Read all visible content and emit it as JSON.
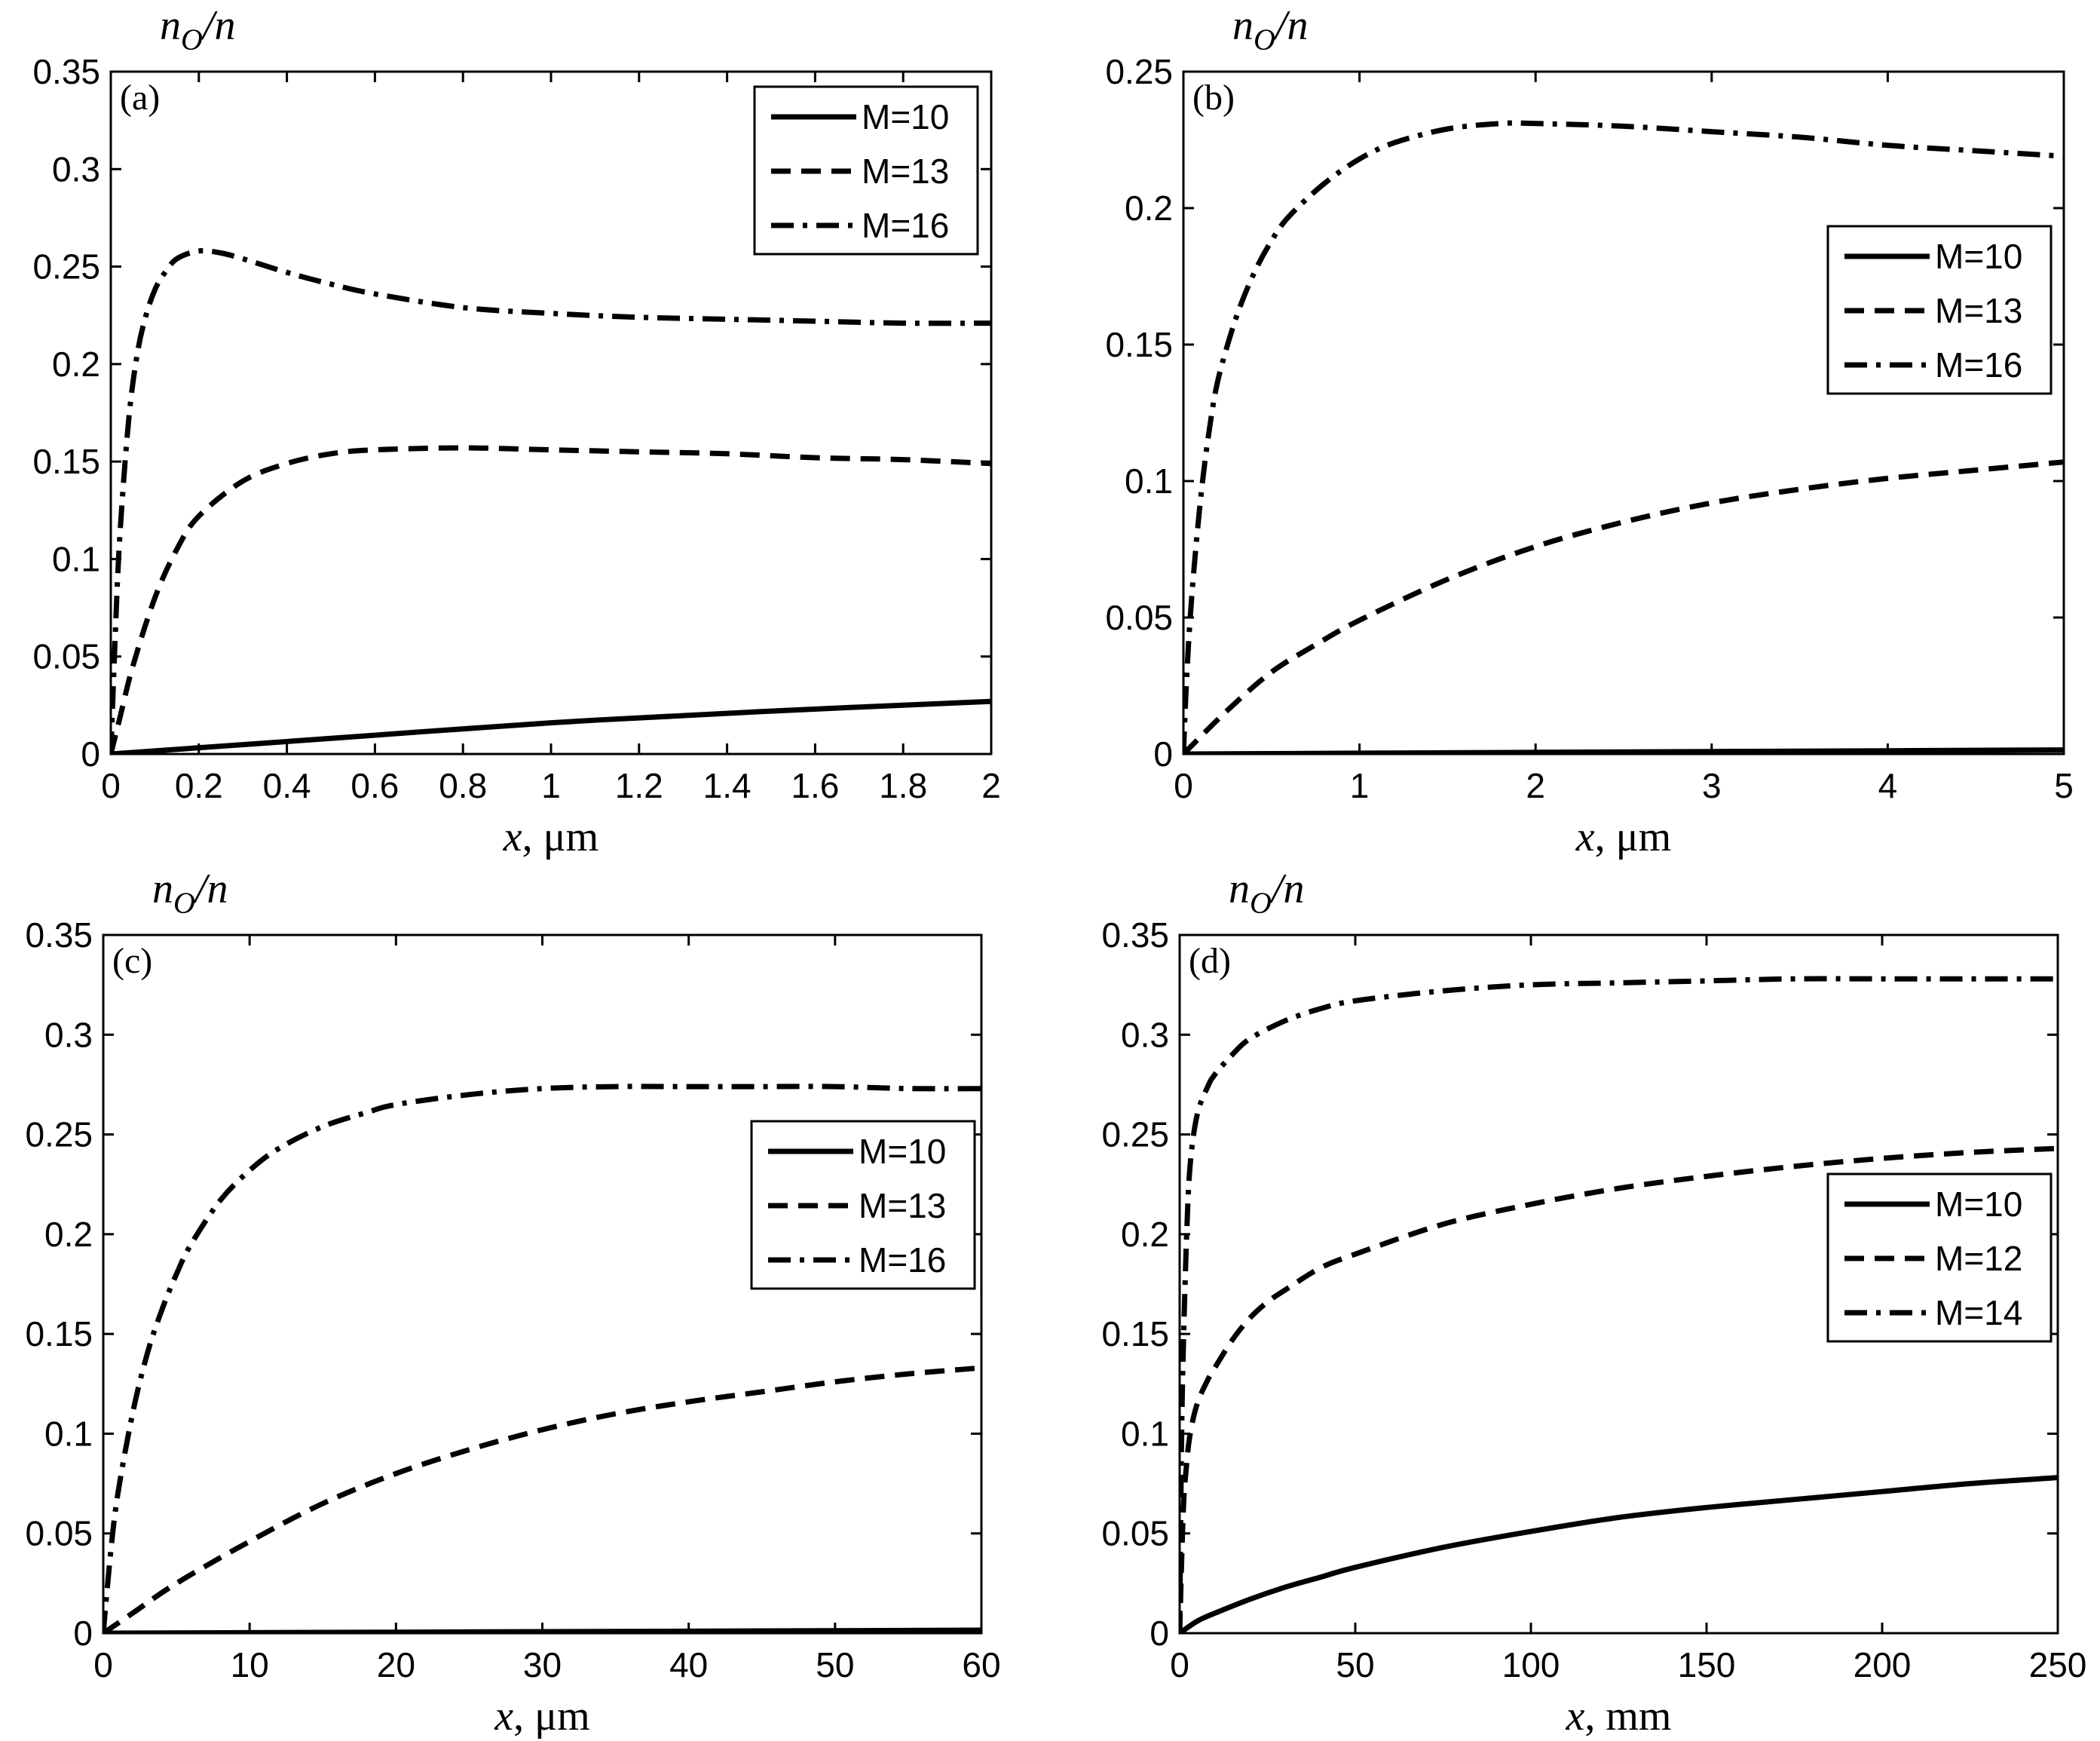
{
  "styles": {
    "solid": "",
    "dashed": "26,14",
    "dashdot": "30,12,6,12"
  },
  "chart_data": [
    {
      "type": "line",
      "panel_label": "(a)",
      "ylabel_main": "n",
      "ylabel_sub": "O",
      "ylabel_rest": "/n",
      "xlabel_var": "x",
      "xlabel_unit": ", μm",
      "xlim": [
        0,
        2
      ],
      "ylim": [
        0,
        0.35
      ],
      "xticks": [
        0,
        0.2,
        0.4,
        0.6,
        0.8,
        1,
        1.2,
        1.4,
        1.6,
        1.8,
        2
      ],
      "xtick_labels": [
        "0",
        "0.2",
        "0.4",
        "0.6",
        "0.8",
        "1",
        "1.2",
        "1.4",
        "1.6",
        "1.8",
        "2"
      ],
      "yticks": [
        0,
        0.05,
        0.1,
        0.15,
        0.2,
        0.25,
        0.3,
        0.35
      ],
      "ytick_labels": [
        "0",
        "0.05",
        "0.1",
        "0.15",
        "0.2",
        "0.25",
        "0.3",
        "0.35"
      ],
      "legend_position": "top-right",
      "series": [
        {
          "name": "M=10",
          "style": "solid",
          "x": [
            0,
            0.5,
            1,
            1.5,
            2
          ],
          "y": [
            0,
            0.008,
            0.016,
            0.022,
            0.027
          ]
        },
        {
          "name": "M=13",
          "style": "dashed",
          "x": [
            0,
            0.02,
            0.05,
            0.1,
            0.15,
            0.2,
            0.3,
            0.4,
            0.5,
            0.6,
            0.8,
            1.0,
            1.2,
            1.4,
            1.6,
            1.8,
            2.0
          ],
          "y": [
            0,
            0.018,
            0.045,
            0.08,
            0.105,
            0.122,
            0.14,
            0.149,
            0.154,
            0.156,
            0.157,
            0.156,
            0.155,
            0.154,
            0.152,
            0.151,
            0.149
          ]
        },
        {
          "name": "M=16",
          "style": "dashdot",
          "x": [
            0,
            0.01,
            0.02,
            0.04,
            0.06,
            0.08,
            0.1,
            0.12,
            0.15,
            0.2,
            0.25,
            0.3,
            0.4,
            0.5,
            0.6,
            0.8,
            1.0,
            1.2,
            1.4,
            1.6,
            1.8,
            2.0
          ],
          "y": [
            0,
            0.06,
            0.11,
            0.17,
            0.205,
            0.225,
            0.238,
            0.246,
            0.254,
            0.258,
            0.257,
            0.254,
            0.247,
            0.241,
            0.236,
            0.229,
            0.226,
            0.224,
            0.223,
            0.222,
            0.221,
            0.221
          ]
        }
      ]
    },
    {
      "type": "line",
      "panel_label": "(b)",
      "ylabel_main": "n",
      "ylabel_sub": "O",
      "ylabel_rest": "/n",
      "xlabel_var": "x",
      "xlabel_unit": ", μm",
      "xlim": [
        0,
        5
      ],
      "ylim": [
        0,
        0.25
      ],
      "xticks": [
        0,
        1,
        2,
        3,
        4,
        5
      ],
      "xtick_labels": [
        "0",
        "1",
        "2",
        "3",
        "4",
        "5"
      ],
      "yticks": [
        0,
        0.05,
        0.1,
        0.15,
        0.2,
        0.25
      ],
      "ytick_labels": [
        "0",
        "0.05",
        "0.1",
        "0.15",
        "0.2",
        "0.25"
      ],
      "legend_position": "upper-right",
      "series": [
        {
          "name": "M=10",
          "style": "solid",
          "x": [
            0,
            1,
            2,
            3,
            4,
            5
          ],
          "y": [
            0,
            0.0003,
            0.0006,
            0.0009,
            0.0012,
            0.0015
          ]
        },
        {
          "name": "M=13",
          "style": "dashed",
          "x": [
            0,
            0.25,
            0.5,
            0.75,
            1.0,
            1.5,
            2.0,
            2.5,
            3.0,
            3.5,
            4.0,
            4.5,
            5.0
          ],
          "y": [
            0,
            0.016,
            0.03,
            0.04,
            0.049,
            0.064,
            0.076,
            0.085,
            0.092,
            0.097,
            0.101,
            0.104,
            0.107
          ]
        },
        {
          "name": "M=16",
          "style": "dashdot",
          "x": [
            0,
            0.02,
            0.05,
            0.1,
            0.15,
            0.2,
            0.3,
            0.4,
            0.5,
            0.6,
            0.8,
            1.0,
            1.2,
            1.5,
            1.8,
            2.0,
            2.5,
            3.0,
            3.5,
            4.0,
            4.5,
            5.0
          ],
          "y": [
            0,
            0.03,
            0.06,
            0.095,
            0.12,
            0.138,
            0.16,
            0.176,
            0.188,
            0.197,
            0.209,
            0.218,
            0.224,
            0.229,
            0.231,
            0.231,
            0.23,
            0.228,
            0.226,
            0.223,
            0.221,
            0.219
          ]
        }
      ]
    },
    {
      "type": "line",
      "panel_label": "(c)",
      "ylabel_main": "n",
      "ylabel_sub": "O",
      "ylabel_rest": "/n",
      "xlabel_var": "x",
      "xlabel_unit": ", μm",
      "xlim": [
        0,
        60
      ],
      "ylim": [
        0,
        0.35
      ],
      "xticks": [
        0,
        10,
        20,
        30,
        40,
        50,
        60
      ],
      "xtick_labels": [
        "0",
        "10",
        "20",
        "30",
        "40",
        "50",
        "60"
      ],
      "yticks": [
        0,
        0.05,
        0.1,
        0.15,
        0.2,
        0.25,
        0.3,
        0.35
      ],
      "ytick_labels": [
        "0",
        "0.05",
        "0.1",
        "0.15",
        "0.2",
        "0.25",
        "0.3",
        "0.35"
      ],
      "legend_position": "center-right",
      "series": [
        {
          "name": "M=10",
          "style": "solid",
          "x": [
            0,
            20,
            40,
            60
          ],
          "y": [
            0,
            0.0005,
            0.001,
            0.0015
          ]
        },
        {
          "name": "M=13",
          "style": "dashed",
          "x": [
            0,
            2,
            5,
            10,
            15,
            20,
            25,
            30,
            35,
            40,
            45,
            50,
            55,
            60
          ],
          "y": [
            0,
            0.01,
            0.025,
            0.046,
            0.065,
            0.08,
            0.092,
            0.102,
            0.11,
            0.116,
            0.121,
            0.126,
            0.13,
            0.133
          ]
        },
        {
          "name": "M=16",
          "style": "dashdot",
          "x": [
            0,
            0.5,
            1,
            2,
            3,
            4,
            5,
            6,
            8,
            10,
            12,
            15,
            18,
            20,
            25,
            30,
            35,
            40,
            45,
            50,
            55,
            60
          ],
          "y": [
            0,
            0.04,
            0.07,
            0.11,
            0.14,
            0.162,
            0.18,
            0.195,
            0.217,
            0.232,
            0.243,
            0.254,
            0.261,
            0.265,
            0.27,
            0.273,
            0.274,
            0.274,
            0.274,
            0.274,
            0.273,
            0.273
          ]
        }
      ]
    },
    {
      "type": "line",
      "panel_label": "(d)",
      "ylabel_main": "n",
      "ylabel_sub": "O",
      "ylabel_rest": "/n",
      "xlabel_var": "x",
      "xlabel_unit": ", mm",
      "xlim": [
        0,
        250
      ],
      "ylim": [
        0,
        0.35
      ],
      "xticks": [
        0,
        50,
        100,
        150,
        200,
        250
      ],
      "xtick_labels": [
        "0",
        "50",
        "100",
        "150",
        "200",
        "250"
      ],
      "yticks": [
        0,
        0.05,
        0.1,
        0.15,
        0.2,
        0.25,
        0.3,
        0.35
      ],
      "ytick_labels": [
        "0",
        "0.05",
        "0.1",
        "0.15",
        "0.2",
        "0.25",
        "0.3",
        "0.35"
      ],
      "legend_position": "center-right",
      "series": [
        {
          "name": "M=10",
          "style": "solid",
          "x": [
            0,
            5,
            10,
            20,
            30,
            40,
            50,
            75,
            100,
            125,
            150,
            175,
            200,
            225,
            250
          ],
          "y": [
            0,
            0.006,
            0.01,
            0.017,
            0.023,
            0.028,
            0.033,
            0.043,
            0.051,
            0.058,
            0.063,
            0.067,
            0.071,
            0.075,
            0.078
          ]
        },
        {
          "name": "M=12",
          "style": "dashed",
          "x": [
            0,
            1,
            2,
            3,
            5,
            8,
            10,
            15,
            20,
            25,
            30,
            40,
            50,
            75,
            100,
            125,
            150,
            175,
            200,
            225,
            250
          ],
          "y": [
            0,
            0.06,
            0.085,
            0.1,
            0.115,
            0.127,
            0.133,
            0.147,
            0.158,
            0.166,
            0.172,
            0.183,
            0.19,
            0.205,
            0.215,
            0.223,
            0.229,
            0.234,
            0.238,
            0.241,
            0.243
          ]
        },
        {
          "name": "M=14",
          "style": "dashdot",
          "x": [
            0,
            0.5,
            1,
            2,
            3,
            5,
            8,
            10,
            15,
            20,
            30,
            40,
            50,
            75,
            100,
            125,
            150,
            175,
            200,
            225,
            250
          ],
          "y": [
            0,
            0.09,
            0.14,
            0.2,
            0.235,
            0.26,
            0.274,
            0.28,
            0.29,
            0.298,
            0.307,
            0.313,
            0.317,
            0.322,
            0.325,
            0.326,
            0.327,
            0.328,
            0.328,
            0.328,
            0.328
          ]
        }
      ]
    }
  ]
}
